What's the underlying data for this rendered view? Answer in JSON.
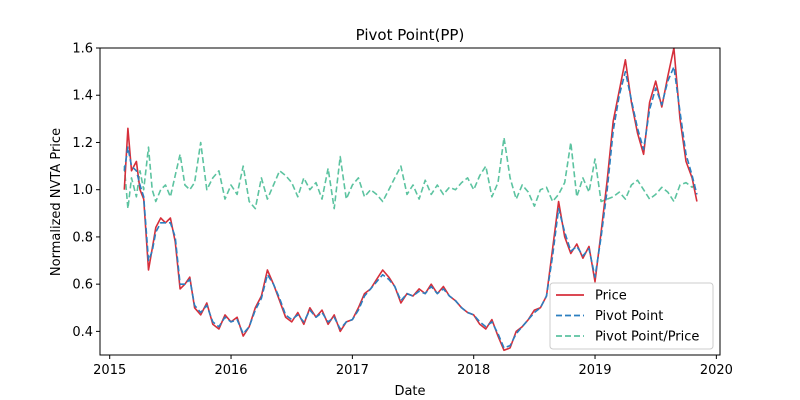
{
  "chart_data": {
    "type": "line",
    "title": "Pivot Point(PP)",
    "xlabel": "Date",
    "ylabel": "Normalized NVTA Price",
    "xlim": [
      2014.92,
      2020.03
    ],
    "ylim": [
      0.3,
      1.6
    ],
    "x_ticks": [
      2015,
      2016,
      2017,
      2018,
      2019,
      2020
    ],
    "x_tick_labels": [
      "2015",
      "2016",
      "2017",
      "2018",
      "2019",
      "2020"
    ],
    "y_ticks": [
      0.4,
      0.6,
      0.8,
      1.0,
      1.2,
      1.4,
      1.6
    ],
    "y_tick_labels": [
      "0.4",
      "0.6",
      "0.8",
      "1.0",
      "1.2",
      "1.4",
      "1.6"
    ],
    "grid": false,
    "legend_position": "lower-right",
    "series": [
      {
        "name": "Price",
        "color": "#d62f3b",
        "style": "solid",
        "x": [
          2015.12,
          2015.15,
          2015.18,
          2015.22,
          2015.25,
          2015.28,
          2015.32,
          2015.35,
          2015.38,
          2015.42,
          2015.46,
          2015.5,
          2015.54,
          2015.58,
          2015.62,
          2015.66,
          2015.7,
          2015.75,
          2015.8,
          2015.85,
          2015.9,
          2015.95,
          2016.0,
          2016.05,
          2016.1,
          2016.15,
          2016.2,
          2016.25,
          2016.3,
          2016.35,
          2016.4,
          2016.45,
          2016.5,
          2016.55,
          2016.6,
          2016.65,
          2016.7,
          2016.75,
          2016.8,
          2016.85,
          2016.9,
          2016.95,
          2017.0,
          2017.05,
          2017.1,
          2017.15,
          2017.2,
          2017.25,
          2017.3,
          2017.35,
          2017.4,
          2017.45,
          2017.5,
          2017.55,
          2017.6,
          2017.65,
          2017.7,
          2017.75,
          2017.8,
          2017.85,
          2017.9,
          2017.95,
          2018.0,
          2018.05,
          2018.1,
          2018.15,
          2018.2,
          2018.25,
          2018.3,
          2018.35,
          2018.4,
          2018.45,
          2018.5,
          2018.55,
          2018.6,
          2018.65,
          2018.7,
          2018.75,
          2018.8,
          2018.85,
          2018.9,
          2018.95,
          2019.0,
          2019.05,
          2019.1,
          2019.15,
          2019.2,
          2019.25,
          2019.3,
          2019.35,
          2019.4,
          2019.45,
          2019.5,
          2019.55,
          2019.6,
          2019.65,
          2019.7,
          2019.75,
          2019.8,
          2019.84
        ],
        "values": [
          1.0,
          1.26,
          1.08,
          1.12,
          1.0,
          0.96,
          0.66,
          0.75,
          0.84,
          0.88,
          0.86,
          0.88,
          0.78,
          0.58,
          0.6,
          0.63,
          0.5,
          0.47,
          0.52,
          0.43,
          0.41,
          0.47,
          0.44,
          0.46,
          0.38,
          0.42,
          0.5,
          0.55,
          0.66,
          0.6,
          0.53,
          0.46,
          0.44,
          0.48,
          0.43,
          0.5,
          0.46,
          0.49,
          0.43,
          0.47,
          0.4,
          0.44,
          0.45,
          0.5,
          0.56,
          0.58,
          0.62,
          0.66,
          0.63,
          0.59,
          0.52,
          0.56,
          0.55,
          0.58,
          0.56,
          0.6,
          0.56,
          0.59,
          0.55,
          0.53,
          0.5,
          0.48,
          0.47,
          0.43,
          0.41,
          0.45,
          0.38,
          0.32,
          0.33,
          0.4,
          0.42,
          0.45,
          0.49,
          0.5,
          0.55,
          0.75,
          0.95,
          0.8,
          0.73,
          0.77,
          0.71,
          0.76,
          0.61,
          0.82,
          1.04,
          1.29,
          1.42,
          1.55,
          1.37,
          1.24,
          1.15,
          1.37,
          1.46,
          1.35,
          1.48,
          1.6,
          1.3,
          1.12,
          1.05,
          0.95
        ]
      },
      {
        "name": "Pivot Point",
        "color": "#2b7fc0",
        "style": "dashed",
        "x": [
          2015.12,
          2015.15,
          2015.18,
          2015.22,
          2015.25,
          2015.28,
          2015.32,
          2015.35,
          2015.38,
          2015.42,
          2015.46,
          2015.5,
          2015.54,
          2015.58,
          2015.62,
          2015.66,
          2015.7,
          2015.75,
          2015.8,
          2015.85,
          2015.9,
          2015.95,
          2016.0,
          2016.05,
          2016.1,
          2016.15,
          2016.2,
          2016.25,
          2016.3,
          2016.35,
          2016.4,
          2016.45,
          2016.5,
          2016.55,
          2016.6,
          2016.65,
          2016.7,
          2016.75,
          2016.8,
          2016.85,
          2016.9,
          2016.95,
          2017.0,
          2017.05,
          2017.1,
          2017.15,
          2017.2,
          2017.25,
          2017.3,
          2017.35,
          2017.4,
          2017.45,
          2017.5,
          2017.55,
          2017.6,
          2017.65,
          2017.7,
          2017.75,
          2017.8,
          2017.85,
          2017.9,
          2017.95,
          2018.0,
          2018.05,
          2018.1,
          2018.15,
          2018.2,
          2018.25,
          2018.3,
          2018.35,
          2018.4,
          2018.45,
          2018.5,
          2018.55,
          2018.6,
          2018.65,
          2018.7,
          2018.75,
          2018.8,
          2018.85,
          2018.9,
          2018.95,
          2019.0,
          2019.05,
          2019.1,
          2019.15,
          2019.2,
          2019.25,
          2019.3,
          2019.35,
          2019.4,
          2019.45,
          2019.5,
          2019.55,
          2019.6,
          2019.65,
          2019.7,
          2019.75,
          2019.8,
          2019.84
        ],
        "values": [
          1.08,
          1.18,
          1.1,
          1.08,
          1.02,
          0.97,
          0.7,
          0.74,
          0.82,
          0.86,
          0.86,
          0.86,
          0.8,
          0.6,
          0.6,
          0.62,
          0.51,
          0.48,
          0.51,
          0.44,
          0.42,
          0.46,
          0.44,
          0.45,
          0.39,
          0.42,
          0.49,
          0.54,
          0.64,
          0.6,
          0.54,
          0.47,
          0.45,
          0.47,
          0.44,
          0.49,
          0.46,
          0.48,
          0.44,
          0.46,
          0.41,
          0.44,
          0.45,
          0.49,
          0.55,
          0.58,
          0.61,
          0.64,
          0.62,
          0.59,
          0.53,
          0.56,
          0.55,
          0.57,
          0.56,
          0.59,
          0.56,
          0.58,
          0.55,
          0.53,
          0.5,
          0.48,
          0.47,
          0.44,
          0.42,
          0.44,
          0.39,
          0.33,
          0.34,
          0.39,
          0.42,
          0.45,
          0.48,
          0.5,
          0.55,
          0.72,
          0.92,
          0.82,
          0.74,
          0.76,
          0.72,
          0.75,
          0.63,
          0.8,
          1.0,
          1.25,
          1.4,
          1.5,
          1.38,
          1.26,
          1.17,
          1.34,
          1.43,
          1.36,
          1.46,
          1.52,
          1.33,
          1.15,
          1.06,
          0.98
        ]
      },
      {
        "name": "Pivot Point/Price",
        "color": "#5cc3a0",
        "style": "dashed",
        "x": [
          2015.12,
          2015.15,
          2015.18,
          2015.22,
          2015.25,
          2015.28,
          2015.32,
          2015.35,
          2015.38,
          2015.42,
          2015.46,
          2015.5,
          2015.54,
          2015.58,
          2015.62,
          2015.66,
          2015.7,
          2015.75,
          2015.8,
          2015.85,
          2015.9,
          2015.95,
          2016.0,
          2016.05,
          2016.1,
          2016.15,
          2016.2,
          2016.25,
          2016.3,
          2016.35,
          2016.4,
          2016.45,
          2016.5,
          2016.55,
          2016.6,
          2016.65,
          2016.7,
          2016.75,
          2016.8,
          2016.85,
          2016.9,
          2016.95,
          2017.0,
          2017.05,
          2017.1,
          2017.15,
          2017.2,
          2017.25,
          2017.3,
          2017.35,
          2017.4,
          2017.45,
          2017.5,
          2017.55,
          2017.6,
          2017.65,
          2017.7,
          2017.75,
          2017.8,
          2017.85,
          2017.9,
          2017.95,
          2018.0,
          2018.05,
          2018.1,
          2018.15,
          2018.2,
          2018.25,
          2018.3,
          2018.35,
          2018.4,
          2018.45,
          2018.5,
          2018.55,
          2018.6,
          2018.65,
          2018.7,
          2018.75,
          2018.8,
          2018.85,
          2018.9,
          2018.95,
          2019.0,
          2019.05,
          2019.1,
          2019.15,
          2019.2,
          2019.25,
          2019.3,
          2019.35,
          2019.4,
          2019.45,
          2019.5,
          2019.55,
          2019.6,
          2019.65,
          2019.7,
          2019.75,
          2019.8,
          2019.84
        ],
        "values": [
          1.1,
          0.92,
          1.05,
          0.97,
          1.08,
          1.0,
          1.18,
          1.0,
          0.95,
          1.0,
          1.02,
          0.97,
          1.06,
          1.15,
          1.02,
          1.0,
          1.03,
          1.2,
          1.0,
          1.05,
          1.08,
          0.96,
          1.02,
          0.98,
          1.1,
          0.95,
          0.92,
          1.05,
          0.96,
          1.02,
          1.08,
          1.06,
          1.03,
          0.97,
          1.05,
          1.0,
          1.03,
          0.96,
          1.09,
          0.92,
          1.14,
          0.96,
          1.02,
          1.05,
          0.97,
          1.0,
          0.98,
          0.95,
          1.0,
          1.05,
          1.1,
          0.98,
          1.02,
          0.96,
          1.04,
          0.98,
          1.02,
          0.98,
          1.01,
          1.0,
          1.03,
          1.05,
          1.0,
          1.06,
          1.1,
          0.97,
          1.03,
          1.22,
          1.05,
          0.96,
          1.02,
          0.99,
          0.93,
          1.0,
          1.01,
          0.95,
          0.98,
          1.03,
          1.2,
          0.97,
          1.05,
          0.99,
          1.13,
          0.95,
          0.96,
          0.97,
          0.99,
          0.96,
          1.02,
          1.04,
          1.0,
          0.96,
          0.98,
          1.01,
          0.99,
          0.95,
          1.02,
          1.03,
          1.01,
          1.03
        ]
      }
    ]
  }
}
